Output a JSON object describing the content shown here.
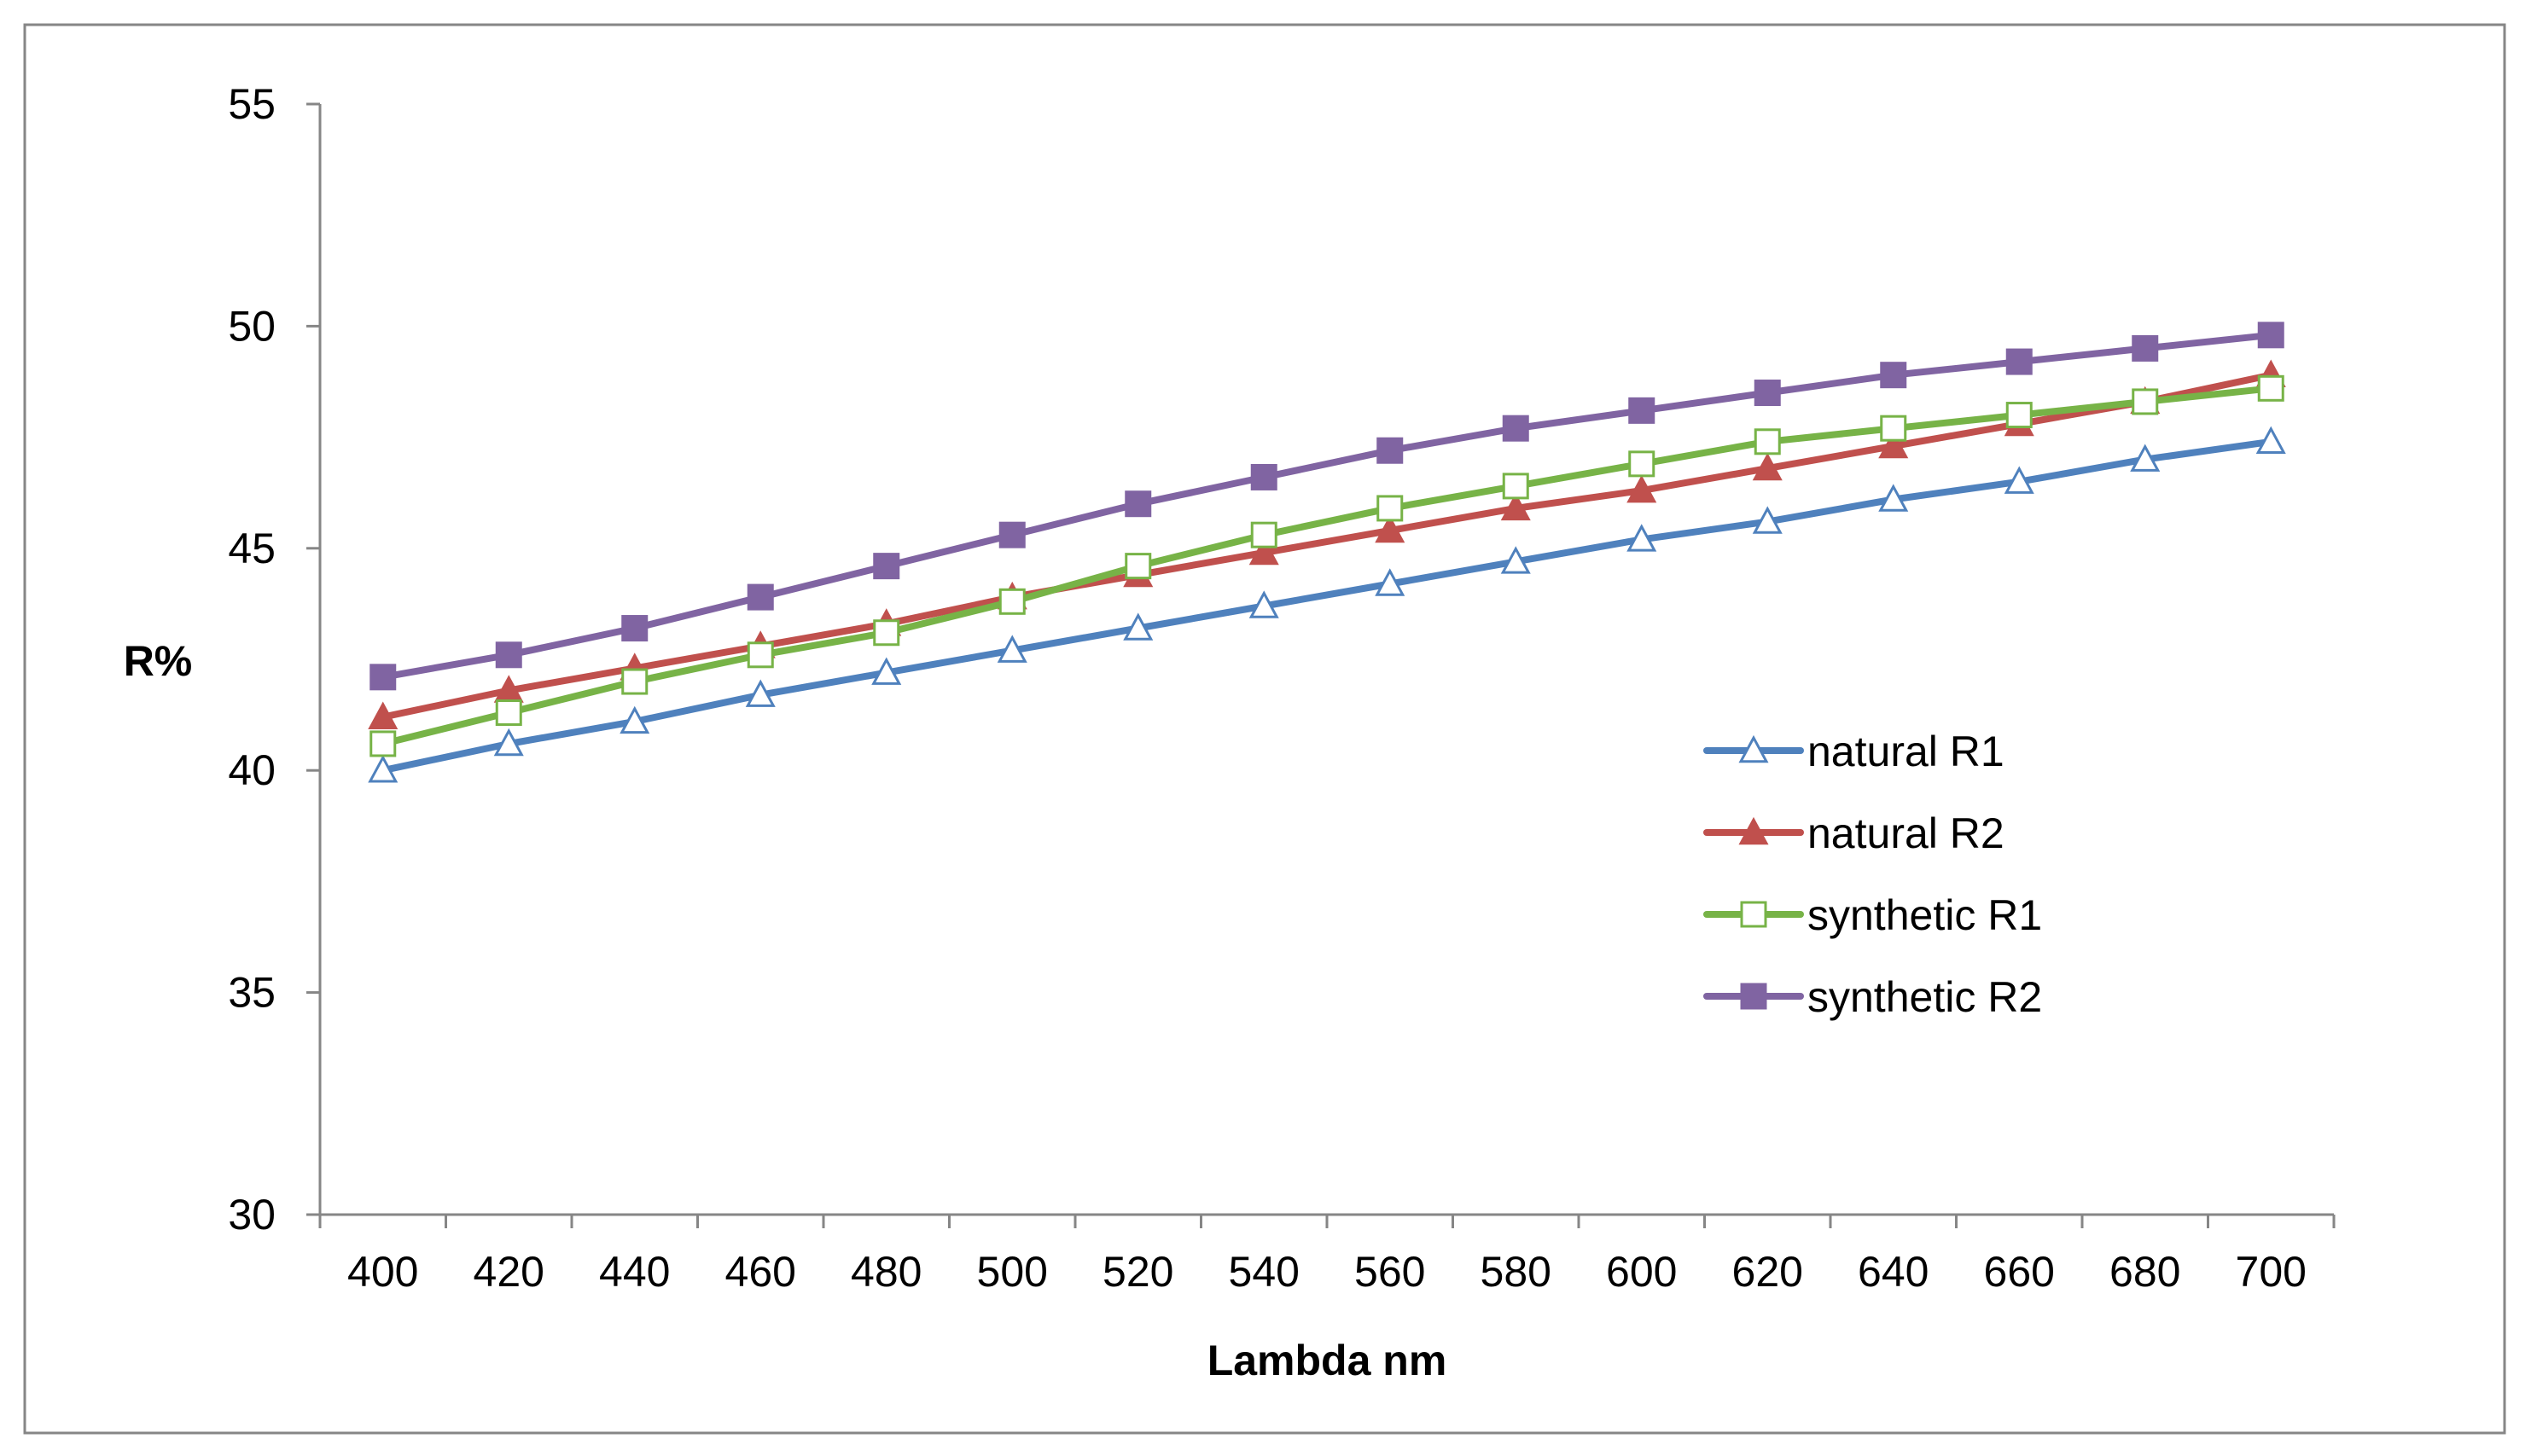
{
  "chart_data": {
    "type": "line",
    "title": "",
    "xlabel": "Lambda nm",
    "ylabel": "R%",
    "categories": [
      "400",
      "420",
      "440",
      "460",
      "480",
      "500",
      "520",
      "540",
      "560",
      "580",
      "600",
      "620",
      "640",
      "660",
      "680",
      "700"
    ],
    "ylim": [
      30,
      55
    ],
    "yticks": [
      30,
      35,
      40,
      45,
      50,
      55
    ],
    "grid": false,
    "legend_position": "right",
    "series": [
      {
        "name": "natural R1",
        "color": "#4f81bd",
        "marker": "triangle-open",
        "values": [
          40.0,
          40.6,
          41.1,
          41.7,
          42.2,
          42.7,
          43.2,
          43.7,
          44.2,
          44.7,
          45.2,
          45.6,
          46.1,
          46.5,
          47.0,
          47.4
        ]
      },
      {
        "name": "natural R2",
        "color": "#c0504d",
        "marker": "triangle-filled",
        "values": [
          41.2,
          41.8,
          42.3,
          42.8,
          43.3,
          43.9,
          44.4,
          44.9,
          45.4,
          45.9,
          46.3,
          46.8,
          47.3,
          47.8,
          48.3,
          48.9
        ]
      },
      {
        "name": "synthetic R1",
        "color": "#77b347",
        "marker": "square-open",
        "values": [
          40.6,
          41.3,
          42.0,
          42.6,
          43.1,
          43.8,
          44.6,
          45.3,
          45.9,
          46.4,
          46.9,
          47.4,
          47.7,
          48.0,
          48.3,
          48.6
        ]
      },
      {
        "name": "synthetic R2",
        "color": "#8064a2",
        "marker": "square-filled",
        "values": [
          42.1,
          42.6,
          43.2,
          43.9,
          44.6,
          45.3,
          46.0,
          46.6,
          47.2,
          47.7,
          48.1,
          48.5,
          48.9,
          49.2,
          49.5,
          49.8
        ]
      }
    ]
  },
  "colors": {
    "axis": "#868686",
    "frame": "#868686",
    "text": "#000000"
  }
}
